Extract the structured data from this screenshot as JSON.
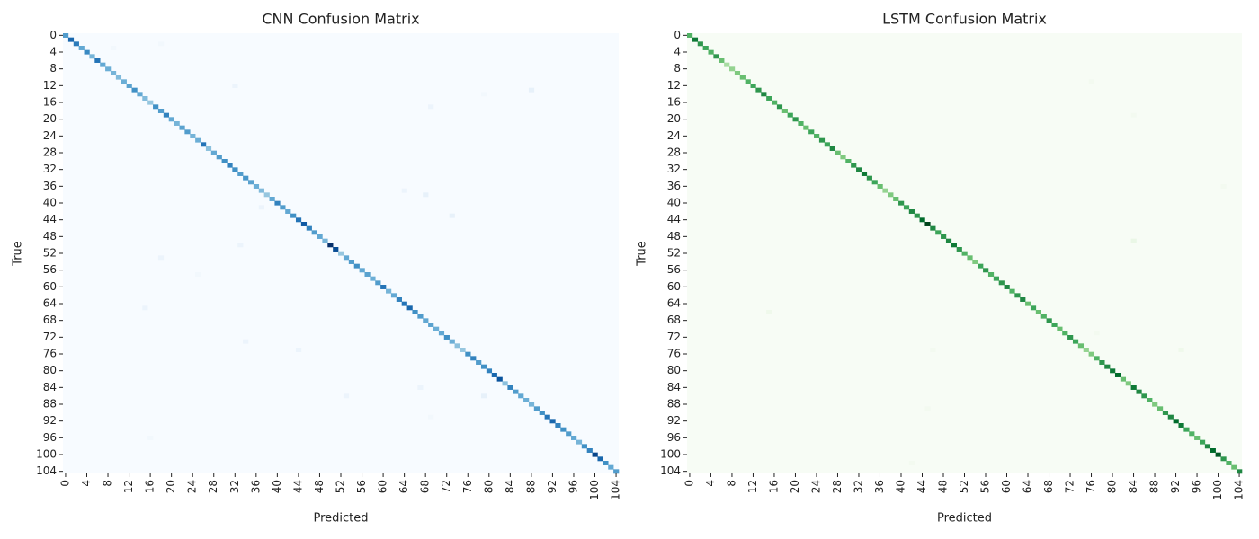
{
  "chart_data": [
    {
      "type": "heatmap",
      "title": "CNN Confusion Matrix",
      "x_label": "Predicted",
      "y_label": "True",
      "colormap": "Blues",
      "categories": [
        0,
        null,
        null,
        null,
        4,
        null,
        null,
        null,
        8,
        null,
        null,
        null,
        12,
        null,
        null,
        null,
        16,
        null,
        null,
        null,
        20,
        null,
        null,
        null,
        24,
        null,
        null,
        null,
        28,
        null,
        null,
        null,
        32,
        null,
        null,
        null,
        36,
        null,
        null,
        null,
        40,
        null,
        null,
        null,
        44,
        null,
        null,
        null,
        48,
        null,
        null,
        null,
        52,
        null,
        null,
        null,
        56,
        null,
        null,
        null,
        60,
        null,
        null,
        null,
        64,
        null,
        null,
        null,
        68,
        null,
        null,
        null,
        72,
        null,
        null,
        null,
        76,
        null,
        null,
        null,
        80,
        null,
        null,
        null,
        84,
        null,
        null,
        null,
        88,
        null,
        null,
        null,
        92,
        null,
        null,
        null,
        96,
        null,
        null,
        null,
        100,
        null,
        null,
        null,
        104
      ],
      "diagonal": [
        22,
        30,
        27,
        20,
        25,
        18,
        28,
        20,
        19,
        18,
        17,
        19,
        21,
        24,
        20,
        17,
        15,
        24,
        22,
        26,
        20,
        18,
        21,
        22,
        18,
        19,
        28,
        16,
        20,
        22,
        24,
        26,
        24,
        22,
        23,
        21,
        19,
        17,
        15,
        20,
        26,
        22,
        20,
        24,
        28,
        32,
        26,
        22,
        20,
        18,
        38,
        34,
        15,
        20,
        22,
        24,
        20,
        21,
        19,
        22,
        28,
        18,
        20,
        26,
        28,
        30,
        24,
        22,
        20,
        21,
        19,
        20,
        24,
        19,
        16,
        15,
        24,
        26,
        22,
        24,
        26,
        30,
        33,
        16,
        26,
        22,
        20,
        19,
        18,
        22,
        24,
        28,
        30,
        26,
        24,
        22,
        20,
        18,
        24,
        26,
        35,
        30,
        24,
        20,
        22
      ],
      "off_diagonal": [
        [
          3,
          9,
          1
        ],
        [
          2,
          18,
          1
        ],
        [
          12,
          32,
          2
        ],
        [
          14,
          79,
          1
        ],
        [
          13,
          88,
          3
        ],
        [
          17,
          69,
          2
        ],
        [
          37,
          64,
          2
        ],
        [
          38,
          68,
          3
        ],
        [
          41,
          37,
          2
        ],
        [
          43,
          73,
          3
        ],
        [
          50,
          33,
          2
        ],
        [
          53,
          18,
          2
        ],
        [
          57,
          25,
          1
        ],
        [
          65,
          15,
          2
        ],
        [
          73,
          34,
          2
        ],
        [
          75,
          44,
          2
        ],
        [
          86,
          79,
          3
        ],
        [
          86,
          53,
          2
        ],
        [
          84,
          67,
          2
        ],
        [
          96,
          16,
          1
        ],
        [
          91,
          69,
          1
        ]
      ]
    },
    {
      "type": "heatmap",
      "title": "LSTM Confusion Matrix",
      "x_label": "Predicted",
      "y_label": "True",
      "colormap": "Greens",
      "categories": [
        0,
        null,
        null,
        null,
        4,
        null,
        null,
        null,
        8,
        null,
        null,
        null,
        12,
        null,
        null,
        null,
        16,
        null,
        null,
        null,
        20,
        null,
        null,
        null,
        24,
        null,
        null,
        null,
        28,
        null,
        null,
        null,
        32,
        null,
        null,
        null,
        36,
        null,
        null,
        null,
        40,
        null,
        null,
        null,
        44,
        null,
        null,
        null,
        48,
        null,
        null,
        null,
        52,
        null,
        null,
        null,
        56,
        null,
        null,
        null,
        60,
        null,
        null,
        null,
        64,
        null,
        null,
        null,
        68,
        null,
        null,
        null,
        72,
        null,
        null,
        null,
        76,
        null,
        null,
        null,
        80,
        null,
        null,
        null,
        84,
        null,
        null,
        null,
        88,
        null,
        null,
        null,
        92,
        null,
        null,
        null,
        96,
        null,
        null,
        null,
        100,
        null,
        null,
        null,
        104
      ],
      "diagonal": [
        20,
        28,
        24,
        22,
        20,
        24,
        18,
        12,
        14,
        16,
        18,
        20,
        22,
        24,
        26,
        22,
        20,
        24,
        18,
        22,
        24,
        20,
        18,
        22,
        20,
        24,
        22,
        26,
        18,
        16,
        20,
        24,
        26,
        28,
        24,
        22,
        18,
        14,
        16,
        18,
        24,
        22,
        26,
        24,
        30,
        34,
        26,
        22,
        24,
        26,
        28,
        24,
        20,
        18,
        16,
        22,
        24,
        20,
        22,
        24,
        26,
        20,
        24,
        26,
        18,
        22,
        18,
        20,
        24,
        22,
        18,
        20,
        24,
        22,
        18,
        14,
        16,
        20,
        24,
        26,
        28,
        30,
        18,
        16,
        28,
        26,
        24,
        20,
        16,
        18,
        24,
        26,
        30,
        28,
        22,
        20,
        18,
        22,
        26,
        30,
        32,
        24,
        20,
        18,
        26
      ],
      "off_diagonal": [
        [
          49,
          84,
          3
        ],
        [
          66,
          15,
          2
        ],
        [
          71,
          77,
          1
        ],
        [
          75,
          46,
          1
        ],
        [
          75,
          93,
          2
        ],
        [
          89,
          45,
          1
        ],
        [
          102,
          42,
          1
        ],
        [
          36,
          101,
          1
        ],
        [
          19,
          84,
          1
        ],
        [
          11,
          76,
          1
        ]
      ]
    }
  ]
}
